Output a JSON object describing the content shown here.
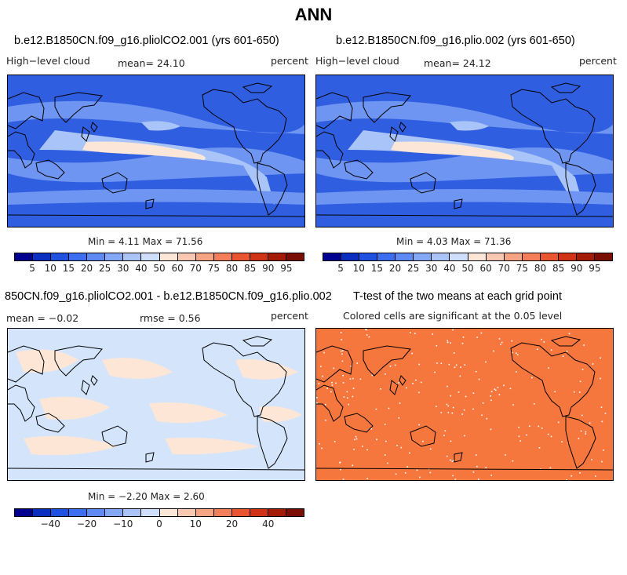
{
  "title": "ANN",
  "panels": {
    "p1": {
      "title": "b.e12.B1850CN.f09_g16.pliolCO2.001 (yrs 601-650)",
      "left_label": "High−level cloud",
      "mean_label": "mean=  24.10",
      "units": "percent",
      "minmax": "Min =   4.11 Max =  71.56"
    },
    "p2": {
      "title": "b.e12.B1850CN.f09_g16.plio.002 (yrs 601-650)",
      "left_label": "High−level cloud",
      "mean_label": "mean=  24.12",
      "units": "percent",
      "minmax": "Min =   4.03 Max =  71.36"
    },
    "p3": {
      "title": "850CN.f09_g16.pliolCO2.001 - b.e12.B1850CN.f09_g16.plio.002",
      "mean_label": "mean =  −0.02",
      "rmse_label": "rmse =    0.56",
      "units": "percent",
      "minmax": "Min =  −2.20 Max =   2.60"
    },
    "p4": {
      "title": "T-test of the two means at each grid point",
      "subtitle": "Colored cells are significant at the 0.05 level"
    }
  },
  "colorbar_abs": {
    "colors": [
      "#00008f",
      "#0a2fc0",
      "#1f52e0",
      "#3d6ef0",
      "#5f8af4",
      "#84a7f6",
      "#aac4f8",
      "#cfdefa",
      "#fbe6d8",
      "#f9c8b0",
      "#f6a584",
      "#f27f5a",
      "#ea5531",
      "#cf3214",
      "#a31a05",
      "#7a0e00"
    ],
    "labels": [
      "5",
      "10",
      "15",
      "20",
      "25",
      "30",
      "40",
      "50",
      "60",
      "70",
      "75",
      "80",
      "85",
      "90",
      "95"
    ]
  },
  "colorbar_diff": {
    "colors": [
      "#00008f",
      "#0a2fc0",
      "#1f52e0",
      "#3d6ef0",
      "#5f8af4",
      "#84a7f6",
      "#aac4f8",
      "#cfdefa",
      "#fbe6d8",
      "#f9c8b0",
      "#f6a584",
      "#f27f5a",
      "#ea5531",
      "#cf3214",
      "#a31a05",
      "#7a0e00"
    ],
    "labels": [
      {
        "text": "−40",
        "at": 2
      },
      {
        "text": "−20",
        "at": 4
      },
      {
        "text": "−10",
        "at": 6
      },
      {
        "text": "0",
        "at": 8
      },
      {
        "text": "10",
        "at": 10
      },
      {
        "text": "20",
        "at": 12
      },
      {
        "text": "40",
        "at": 14
      }
    ]
  },
  "map_colors": {
    "abs_background": "#2f5fe0",
    "abs_mid": "#6f95f2",
    "abs_light": "#a9c4f8",
    "abs_peach": "#fbe6d8",
    "diff_background": "#d4e5fb",
    "diff_peach": "#fde6d6",
    "ttest_background": "#f6773e",
    "coast": "#000000"
  }
}
